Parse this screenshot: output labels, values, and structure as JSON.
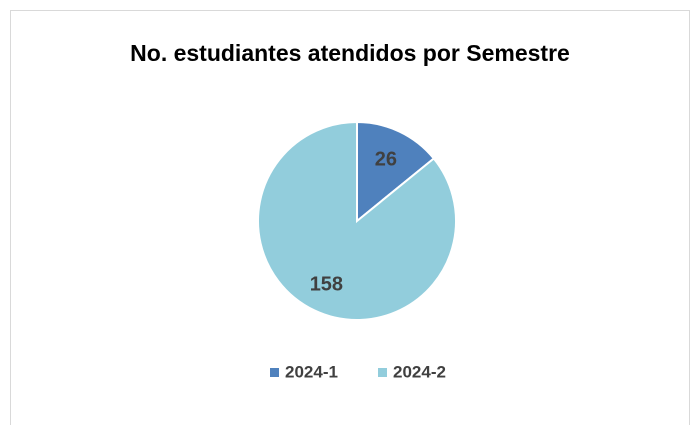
{
  "chart_data": {
    "type": "pie",
    "title": "No. estudiantes atendidos por Semestre",
    "categories": [
      "2024-1",
      "2024-2"
    ],
    "values": [
      26,
      158
    ],
    "colors": [
      "#4f81bd",
      "#92cddc"
    ],
    "legend": "bottom"
  }
}
